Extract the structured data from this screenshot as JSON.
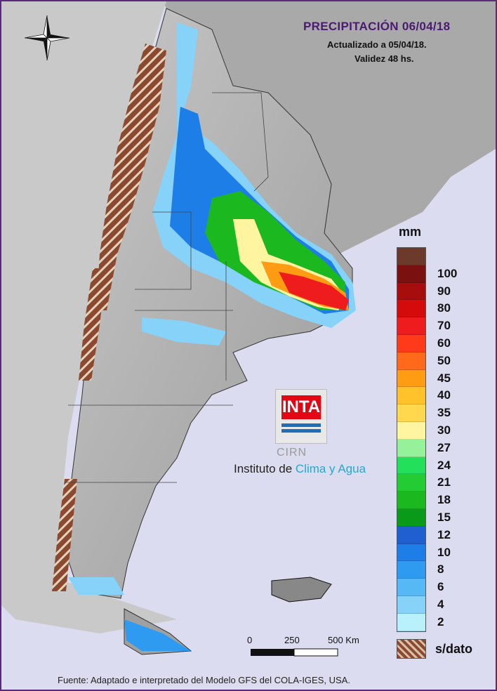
{
  "title": "PRECIPITACIÓN 06/04/18",
  "updated": "Actualizado a 05/04/18.",
  "validity": "Validez 48 hs.",
  "legend": {
    "unit": "mm",
    "items": [
      {
        "label": "100",
        "color": "#7a1010"
      },
      {
        "label": "90",
        "color": "#a80d0d"
      },
      {
        "label": "80",
        "color": "#d40b0b"
      },
      {
        "label": "70",
        "color": "#ee1c1c"
      },
      {
        "label": "60",
        "color": "#ff3a1a"
      },
      {
        "label": "50",
        "color": "#ff6a1a"
      },
      {
        "label": "45",
        "color": "#ff9c14"
      },
      {
        "label": "40",
        "color": "#ffc22a"
      },
      {
        "label": "35",
        "color": "#ffd84e"
      },
      {
        "label": "30",
        "color": "#fff4a0"
      },
      {
        "label": "27",
        "color": "#96f29a"
      },
      {
        "label": "24",
        "color": "#22e05a"
      },
      {
        "label": "21",
        "color": "#24cc34"
      },
      {
        "label": "18",
        "color": "#1cb820"
      },
      {
        "label": "15",
        "color": "#0a9a1a"
      },
      {
        "label": "12",
        "color": "#1f5fd0"
      },
      {
        "label": "10",
        "color": "#1e7ee8"
      },
      {
        "label": "8",
        "color": "#2e9af0"
      },
      {
        "label": "6",
        "color": "#56b8f4"
      },
      {
        "label": "4",
        "color": "#86d2f8"
      },
      {
        "label": "2",
        "color": "#b8f0fc"
      }
    ],
    "top_color": "#6b3a2a",
    "no_data_label": "s/dato"
  },
  "scale_bar": {
    "labels": [
      "0",
      "250",
      "500 Km"
    ]
  },
  "logo": {
    "inta": "INTA",
    "cirn": "CIRN",
    "institute_prefix": "Instituto de ",
    "institute_accent": "Clima y Agua"
  },
  "footer": "Fuente: Adaptado e interpretado del Modelo GFS del COLA-IGES, USA.",
  "compass_icon": "north-arrow-icon"
}
